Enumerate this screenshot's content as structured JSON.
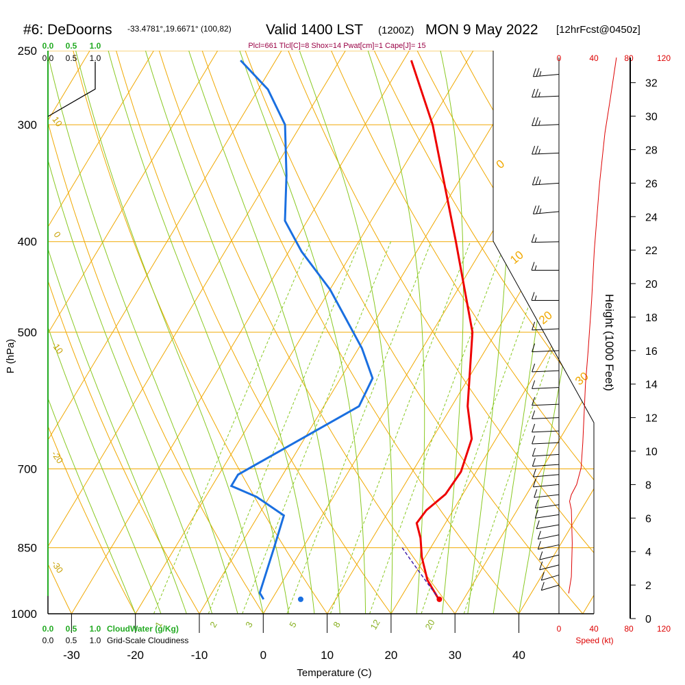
{
  "header": {
    "station": "#6: DeDoorns",
    "coords": "-33.4781°,19.6671° (100,82)",
    "valid": "Valid 1400 LST",
    "utc": "(1200Z)",
    "date": "MON 9 May 2022",
    "forecast": "[12hrFcst@0450z]",
    "params": "Plcl=661 Tlcl[C]=8 Shox=14 Pwat[cm]=1 Cape[J]= 15"
  },
  "colors": {
    "temperature": "#ee0000",
    "dewpoint": "#1a6fe0",
    "isotherm_adiabat": "#f0a800",
    "moist_adiabat": "#88c820",
    "mixing_ratio": "#88c820",
    "cloudwater": "#22aa22",
    "wind_speed": "#dd0000",
    "height_axis": "#000000"
  },
  "chart_data": {
    "type": "line",
    "title": "Skew-T Log-P Sounding",
    "xlabel": "Temperature (C)",
    "ylabel": "P (hPa)",
    "y2label": "Height (1000 Feet)",
    "xticks": [
      -30,
      -20,
      -10,
      0,
      10,
      20,
      30,
      40
    ],
    "yticks": [
      250,
      300,
      400,
      500,
      700,
      850,
      1000
    ],
    "xlim": [
      -34,
      36
    ],
    "ylim": [
      1000,
      250
    ],
    "skew": true,
    "log_pressure": true,
    "series": [
      {
        "name": "Temperature",
        "points": [
          [
            26.1,
            965
          ],
          [
            22.5,
            920
          ],
          [
            19.5,
            870
          ],
          [
            17.5,
            830
          ],
          [
            15.5,
            800
          ],
          [
            15.8,
            775
          ],
          [
            17.3,
            745
          ],
          [
            17.6,
            705
          ],
          [
            16.2,
            650
          ],
          [
            12.5,
            600
          ],
          [
            6.3,
            500
          ],
          [
            -4.8,
            400
          ],
          [
            -19.4,
            300
          ],
          [
            -28.8,
            256
          ]
        ]
      },
      {
        "name": "Dewpoint",
        "points": [
          [
            -1.3,
            965
          ],
          [
            -2.5,
            950
          ],
          [
            -4.5,
            850
          ],
          [
            -6.0,
            785
          ],
          [
            -12.0,
            750
          ],
          [
            -17.0,
            730
          ],
          [
            -17.0,
            710
          ],
          [
            -13.8,
            680
          ],
          [
            -4.5,
            600
          ],
          [
            -5.0,
            560
          ],
          [
            -9.5,
            520
          ],
          [
            -20.0,
            450
          ],
          [
            -28.0,
            410
          ],
          [
            -33.5,
            380
          ],
          [
            -37.5,
            340
          ],
          [
            -42.5,
            300
          ],
          [
            -48.5,
            275
          ],
          [
            -55.5,
            256
          ]
        ]
      },
      {
        "name": "Surface parcel",
        "points": [
          [
            26.2,
            965
          ],
          [
            4.5,
            965
          ]
        ]
      }
    ],
    "isotherm_labels": [
      "-10",
      "0",
      "10",
      "20",
      "30"
    ],
    "dry_adiabat_labels": [
      "10",
      "0",
      "-10",
      "-20",
      "-30"
    ],
    "mixing_ratio_labels": [
      "1",
      "2",
      "3",
      "5",
      "8",
      "12",
      "20"
    ],
    "wind_barbs": [
      {
        "height_kft": 32.5,
        "dir_deg": 290,
        "speed_kt": 25
      },
      {
        "height_kft": 31.2,
        "dir_deg": 280,
        "speed_kt": 25
      },
      {
        "height_kft": 29.5,
        "dir_deg": 280,
        "speed_kt": 25
      },
      {
        "height_kft": 27.8,
        "dir_deg": 280,
        "speed_kt": 25
      },
      {
        "height_kft": 26.0,
        "dir_deg": 285,
        "speed_kt": 25
      },
      {
        "height_kft": 24.3,
        "dir_deg": 290,
        "speed_kt": 25
      },
      {
        "height_kft": 22.5,
        "dir_deg": 275,
        "speed_kt": 15
      },
      {
        "height_kft": 20.8,
        "dir_deg": 270,
        "speed_kt": 15
      },
      {
        "height_kft": 19.0,
        "dir_deg": 270,
        "speed_kt": 15
      },
      {
        "height_kft": 17.3,
        "dir_deg": 260,
        "speed_kt": 10
      },
      {
        "height_kft": 16.0,
        "dir_deg": 260,
        "speed_kt": 10
      },
      {
        "height_kft": 14.8,
        "dir_deg": 260,
        "speed_kt": 10
      },
      {
        "height_kft": 13.8,
        "dir_deg": 260,
        "speed_kt": 10
      },
      {
        "height_kft": 12.8,
        "dir_deg": 260,
        "speed_kt": 10
      },
      {
        "height_kft": 12.0,
        "dir_deg": 260,
        "speed_kt": 10
      },
      {
        "height_kft": 11.2,
        "dir_deg": 260,
        "speed_kt": 10
      },
      {
        "height_kft": 10.5,
        "dir_deg": 260,
        "speed_kt": 10
      },
      {
        "height_kft": 9.8,
        "dir_deg": 255,
        "speed_kt": 10
      },
      {
        "height_kft": 9.2,
        "dir_deg": 255,
        "speed_kt": 10
      },
      {
        "height_kft": 8.6,
        "dir_deg": 250,
        "speed_kt": 10
      },
      {
        "height_kft": 8.0,
        "dir_deg": 250,
        "speed_kt": 10
      },
      {
        "height_kft": 7.4,
        "dir_deg": 245,
        "speed_kt": 10
      },
      {
        "height_kft": 6.8,
        "dir_deg": 240,
        "speed_kt": 10
      },
      {
        "height_kft": 6.2,
        "dir_deg": 240,
        "speed_kt": 10
      },
      {
        "height_kft": 5.6,
        "dir_deg": 235,
        "speed_kt": 10
      },
      {
        "height_kft": 5.0,
        "dir_deg": 230,
        "speed_kt": 10
      },
      {
        "height_kft": 4.4,
        "dir_deg": 230,
        "speed_kt": 10
      },
      {
        "height_kft": 3.8,
        "dir_deg": 225,
        "speed_kt": 10
      },
      {
        "height_kft": 3.2,
        "dir_deg": 225,
        "speed_kt": 10
      },
      {
        "height_kft": 2.6,
        "dir_deg": 220,
        "speed_kt": 10
      },
      {
        "height_kft": 2.0,
        "dir_deg": 220,
        "speed_kt": 10
      }
    ],
    "wind_speed_profile": [
      [
        11,
        1.5
      ],
      [
        14,
        2.5
      ],
      [
        15,
        4.5
      ],
      [
        14,
        6.5
      ],
      [
        12,
        7.0
      ],
      [
        14,
        7.4
      ],
      [
        20,
        8.0
      ],
      [
        25,
        9.0
      ],
      [
        27,
        10.5
      ],
      [
        30,
        14.0
      ],
      [
        33,
        16.0
      ],
      [
        37,
        19.0
      ],
      [
        40,
        22.0
      ],
      [
        46,
        26.0
      ],
      [
        52,
        29.0
      ],
      [
        58,
        31.0
      ],
      [
        65,
        33.5
      ]
    ],
    "height_axis": {
      "label": "Height (1000 Feet)",
      "ticks": [
        0,
        2,
        4,
        6,
        8,
        10,
        12,
        14,
        16,
        18,
        20,
        22,
        24,
        26,
        28,
        30,
        32
      ]
    },
    "speed_axis": {
      "label": "Speed (kt)",
      "ticks": [
        "0",
        "40",
        "80",
        "120"
      ]
    },
    "cloudwater_axis": {
      "label": "CloudWater (g/Kg)",
      "ticks": [
        "0.0",
        "0.5",
        "1.0"
      ]
    },
    "cloudiness_axis": {
      "label": "Grid-Scale Cloudiness",
      "ticks": [
        "0.0",
        "0.5",
        "1.0"
      ]
    }
  }
}
